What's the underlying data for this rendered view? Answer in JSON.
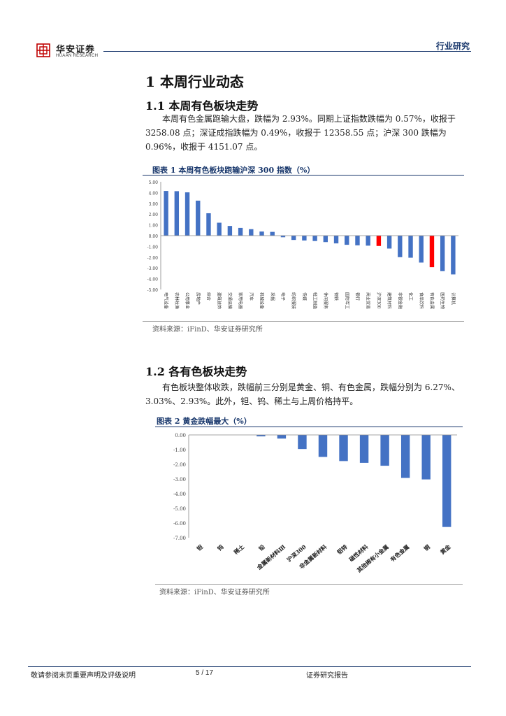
{
  "header": {
    "logo_name": "华安证券",
    "logo_sub": "HUAAN RESEARCH",
    "report_type": "行业研究"
  },
  "section1": {
    "title": "1 本周行业动态",
    "sub1_title": "1.1 本周有色板块走势",
    "sub1_text": "本周有色金属跑输大盘，跌幅为 2.93%。同期上证指数跌幅为 0.57%，收报于 3258.08 点；深证成指跌幅为 0.49%，收报于 12358.55 点；沪深 300 跌幅为 0.96%，收报于 4151.07 点。",
    "sub2_title": "1.2 各有色板块走势",
    "sub2_text": "有色板块整体收跌，跌幅前三分别是黄金、铜、有色金属，跌幅分别为 6.27%、3.03%、2.93%。此外，钽、钨、稀土与上周价格持平。"
  },
  "figure1": {
    "title": "图表 1 本周有色板块跑输沪深 300 指数（%）",
    "source": "资料来源：iFinD、华安证券研究所"
  },
  "figure2": {
    "title": "图表 2 黄金跌幅最大（%）",
    "source": "资料来源：iFinD、华安证券研究所"
  },
  "chart_data": [
    {
      "type": "bar",
      "categories": [
        "电气设备",
        "农林牧渔",
        "公用事业",
        "房地产",
        "综合",
        "建筑装饰",
        "交通运输",
        "家用电器",
        "汽车",
        "机械设备",
        "采掘",
        "电子",
        "纺织服装",
        "传媒",
        "轻工制造",
        "休闲服务",
        "钢铁",
        "国防军工",
        "银行",
        "商业贸易",
        "沪深300",
        "建筑材料",
        "非银金融",
        "化工",
        "食品饮料",
        "有色金属",
        "医药生物",
        "计算机"
      ],
      "values": [
        4.15,
        4.13,
        4.02,
        3.25,
        2.08,
        1.2,
        0.9,
        0.72,
        0.6,
        0.38,
        0.35,
        -0.15,
        -0.4,
        -0.45,
        -0.5,
        -0.6,
        -0.72,
        -0.85,
        -0.9,
        -0.93,
        -0.96,
        -1.2,
        -2.0,
        -2.05,
        -2.5,
        -2.93,
        -3.3,
        -3.6
      ],
      "highlight": [
        "沪深300",
        "有色金属"
      ],
      "bar_color": "#4472C4",
      "highlight_color": "#FF0000",
      "ylim": [
        -5,
        5
      ],
      "yticks": [
        "5.00",
        "4.00",
        "3.00",
        "2.00",
        "1.00",
        "0.00",
        "-1.00",
        "-2.00",
        "-3.00",
        "-4.00",
        "-5.00"
      ]
    },
    {
      "type": "bar",
      "categories": [
        "钽",
        "钨",
        "稀土",
        "铅",
        "金属新材料Ⅲ",
        "沪深300",
        "非金属新材料",
        "铝锌",
        "磁性材料",
        "其他稀有小金属",
        "有色金属",
        "铜",
        "黄金"
      ],
      "values": [
        0,
        0,
        0,
        -0.1,
        -0.25,
        -0.96,
        -1.5,
        -1.78,
        -1.9,
        -2.1,
        -2.93,
        -3.03,
        -6.27
      ],
      "bar_color": "#4472C4",
      "ylim": [
        -7,
        0
      ],
      "yticks": [
        "0.00",
        "-1.00",
        "-2.00",
        "-3.00",
        "-4.00",
        "-5.00",
        "-6.00",
        "-7.00"
      ]
    }
  ],
  "footer": {
    "disclaimer": "敬请参阅末页重要声明及评级说明",
    "page": "5 / 17",
    "report_label": "证券研究报告"
  }
}
